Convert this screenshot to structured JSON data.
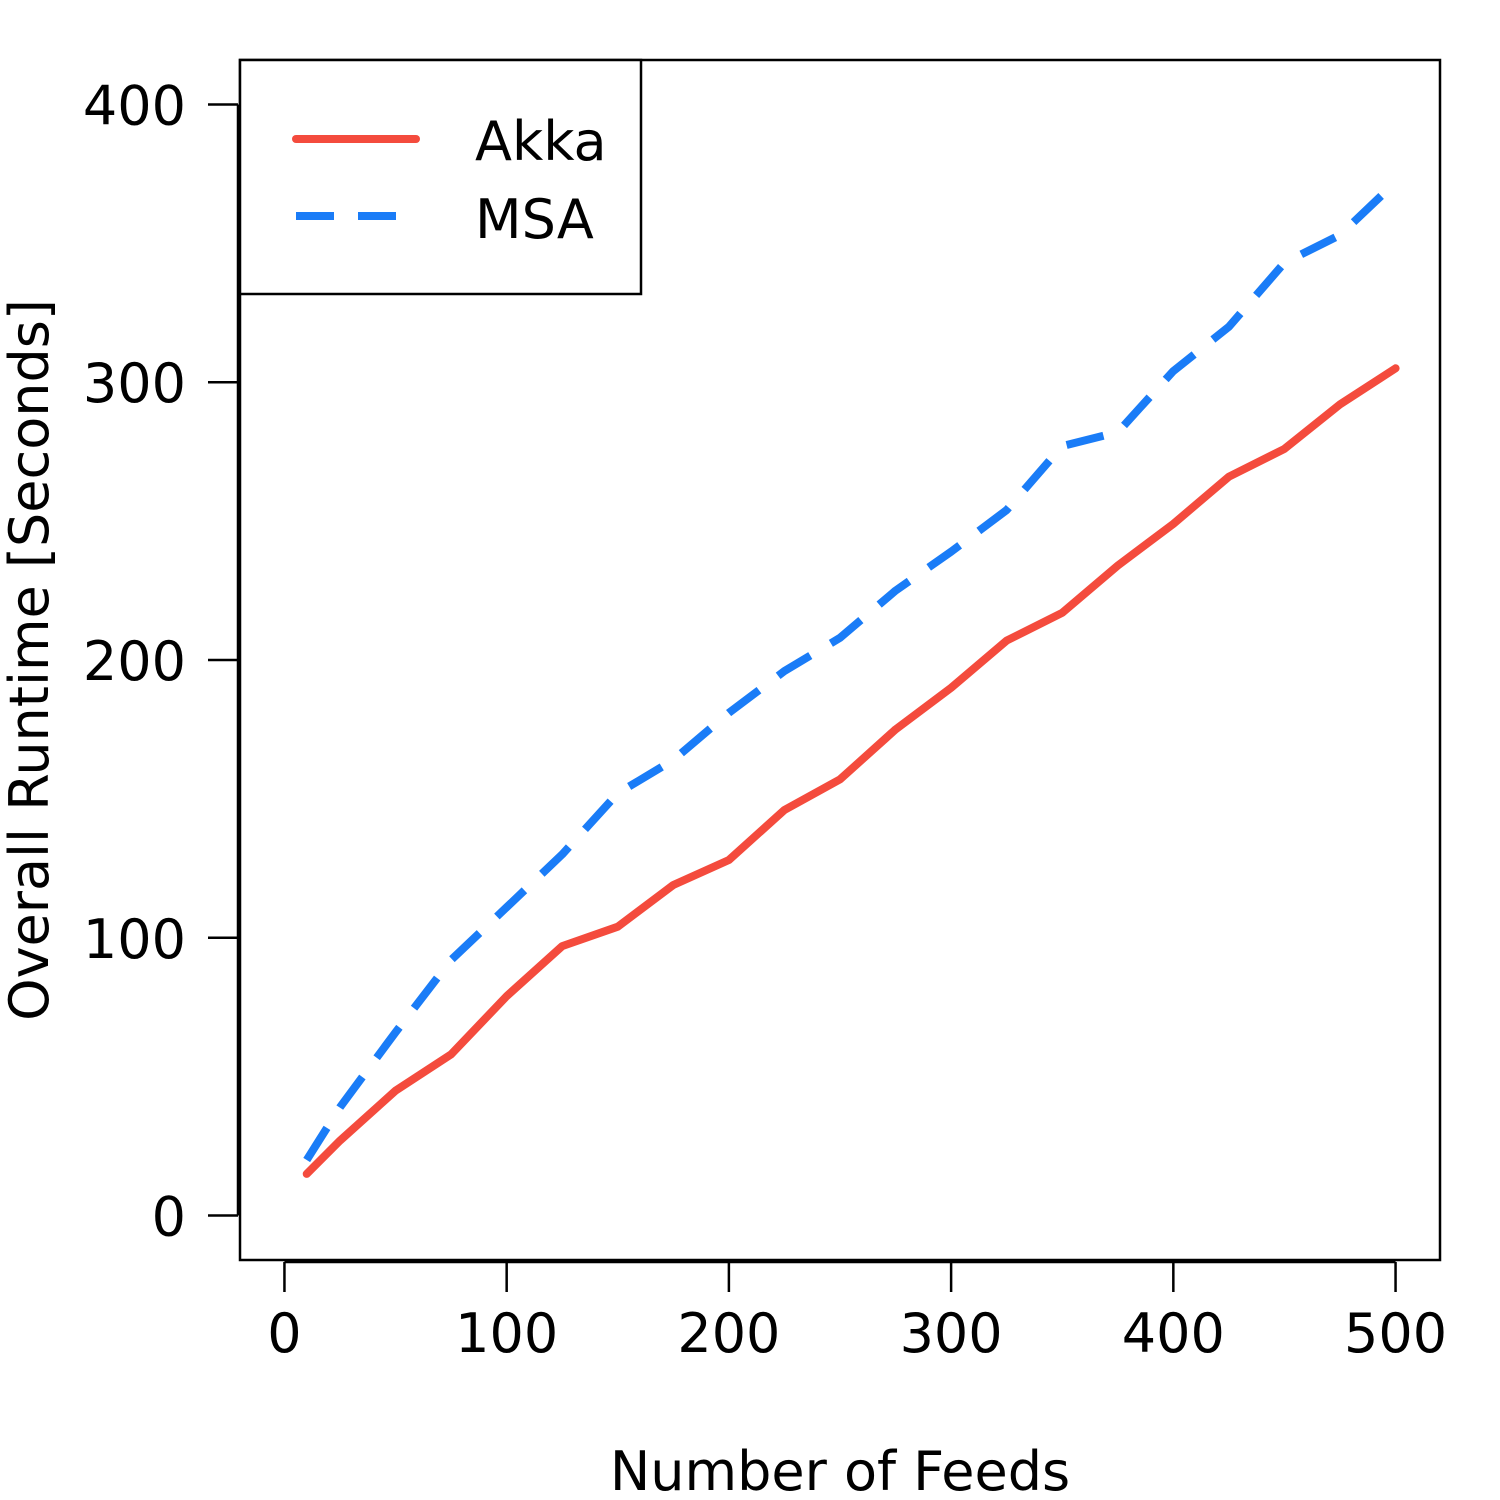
{
  "chart_data": {
    "type": "line",
    "title": "",
    "xlabel": "Number of Feeds",
    "ylabel": "Overall Runtime [Seconds]",
    "xlim": [
      -20,
      520
    ],
    "ylim": [
      -16,
      416
    ],
    "x_ticks": [
      0,
      100,
      200,
      300,
      400,
      500
    ],
    "y_ticks": [
      0,
      100,
      200,
      300,
      400
    ],
    "x_tick_labels": [
      "0",
      "100",
      "200",
      "300",
      "400",
      "500"
    ],
    "y_tick_labels": [
      "0",
      "100",
      "200",
      "300",
      "400"
    ],
    "legend_position": "top-left",
    "series": [
      {
        "name": "Akka",
        "color": "#f44b3d",
        "dash": "solid",
        "x": [
          10,
          25,
          50,
          75,
          100,
          125,
          150,
          175,
          200,
          225,
          250,
          275,
          300,
          325,
          350,
          375,
          400,
          425,
          450,
          475,
          500
        ],
        "values": [
          15,
          27,
          45,
          58,
          79,
          97,
          104,
          119,
          128,
          146,
          157,
          175,
          190,
          207,
          217,
          234,
          249,
          266,
          276,
          292,
          305
        ]
      },
      {
        "name": "MSA",
        "color": "#1a7cf7",
        "dash": "dashed",
        "x": [
          10,
          25,
          50,
          75,
          100,
          125,
          150,
          175,
          200,
          225,
          250,
          275,
          300,
          325,
          350,
          375,
          400,
          425,
          450,
          475,
          500
        ],
        "values": [
          20,
          39,
          66,
          92,
          111,
          130,
          152,
          164,
          181,
          196,
          208,
          225,
          239,
          254,
          277,
          282,
          304,
          320,
          343,
          353,
          372
        ]
      }
    ]
  }
}
